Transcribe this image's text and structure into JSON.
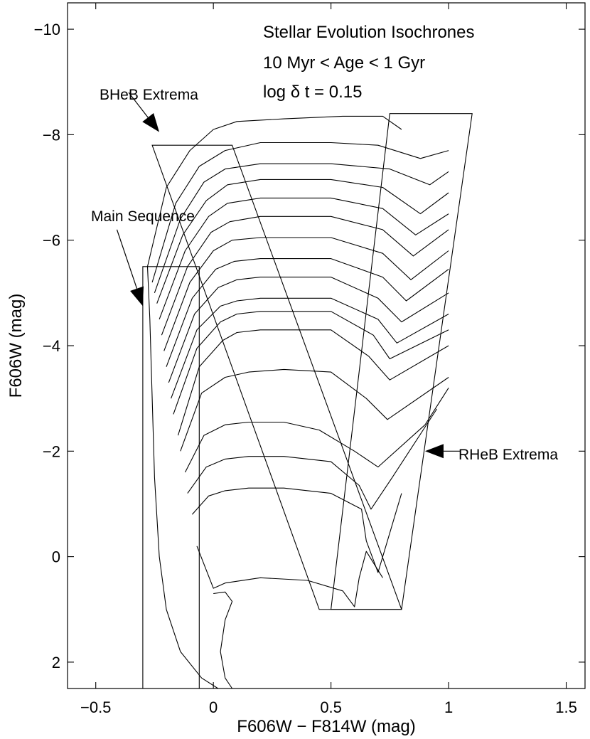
{
  "chart_data": {
    "type": "line",
    "title_lines": [
      "Stellar Evolution Isochrones",
      "10 Myr < Age < 1 Gyr",
      "log δ t = 0.15"
    ],
    "xlabel": "F606W − F814W (mag)",
    "ylabel": "F606W (mag)",
    "xlim": [
      -0.62,
      1.58
    ],
    "ylim": [
      2.5,
      -10.5
    ],
    "y_inverted": true,
    "xticks": [
      -0.5,
      0,
      0.5,
      1,
      1.5
    ],
    "xtick_labels": [
      "−0.5",
      "0",
      "0.5",
      "1",
      "1.5"
    ],
    "yticks": [
      -10,
      -8,
      -6,
      -4,
      -2,
      0,
      2
    ],
    "ytick_labels": [
      "−10",
      "−8",
      "−6",
      "−4",
      "−2",
      "0",
      "2"
    ],
    "annotations": [
      {
        "text": "BHeB Extrema",
        "arrow_to": [
          -0.23,
          -8.05
        ]
      },
      {
        "text": "Main Sequence",
        "arrow_to": [
          -0.3,
          -4.75
        ]
      },
      {
        "text": "RHeB Extrema",
        "arrow_to": [
          0.9,
          -2.0
        ]
      }
    ],
    "regions": [
      {
        "name": "main-sequence-box",
        "points": [
          [
            -0.3,
            2.5
          ],
          [
            -0.3,
            -5.5
          ],
          [
            -0.06,
            -5.5
          ],
          [
            -0.06,
            2.5
          ]
        ]
      },
      {
        "name": "bheb-box",
        "points": [
          [
            -0.26,
            -7.8
          ],
          [
            0.08,
            -7.8
          ],
          [
            0.8,
            1.0
          ],
          [
            0.45,
            1.0
          ]
        ]
      },
      {
        "name": "rheb-box",
        "points": [
          [
            0.75,
            -8.4
          ],
          [
            1.1,
            -8.4
          ],
          [
            0.8,
            1.0
          ],
          [
            0.5,
            1.0
          ]
        ]
      }
    ],
    "series": [
      {
        "name": "isochrone-1",
        "points": [
          [
            -0.28,
            -5.5
          ],
          [
            -0.2,
            -7.0
          ],
          [
            -0.1,
            -7.7
          ],
          [
            0.0,
            -8.1
          ],
          [
            0.1,
            -8.25
          ],
          [
            0.3,
            -8.3
          ],
          [
            0.55,
            -8.35
          ],
          [
            0.72,
            -8.35
          ],
          [
            0.8,
            -8.1
          ]
        ]
      },
      {
        "name": "isochrone-2",
        "points": [
          [
            -0.26,
            -5.2
          ],
          [
            -0.16,
            -6.7
          ],
          [
            -0.06,
            -7.4
          ],
          [
            0.05,
            -7.7
          ],
          [
            0.2,
            -7.85
          ],
          [
            0.5,
            -7.85
          ],
          [
            0.7,
            -7.8
          ],
          [
            0.88,
            -7.55
          ],
          [
            1.0,
            -7.7
          ]
        ]
      },
      {
        "name": "isochrone-3",
        "points": [
          [
            -0.25,
            -5.0
          ],
          [
            -0.14,
            -6.4
          ],
          [
            -0.04,
            -7.1
          ],
          [
            0.05,
            -7.35
          ],
          [
            0.2,
            -7.45
          ],
          [
            0.5,
            -7.45
          ],
          [
            0.75,
            -7.35
          ],
          [
            0.92,
            -7.05
          ],
          [
            1.0,
            -7.3
          ]
        ]
      },
      {
        "name": "isochrone-4",
        "points": [
          [
            -0.24,
            -4.8
          ],
          [
            -0.13,
            -6.1
          ],
          [
            -0.03,
            -6.75
          ],
          [
            0.06,
            -7.05
          ],
          [
            0.2,
            -7.15
          ],
          [
            0.5,
            -7.15
          ],
          [
            0.72,
            -7.0
          ],
          [
            0.88,
            -6.5
          ],
          [
            1.0,
            -6.9
          ]
        ]
      },
      {
        "name": "isochrone-5",
        "points": [
          [
            -0.23,
            -4.5
          ],
          [
            -0.12,
            -5.8
          ],
          [
            -0.02,
            -6.45
          ],
          [
            0.06,
            -6.7
          ],
          [
            0.2,
            -6.8
          ],
          [
            0.5,
            -6.8
          ],
          [
            0.72,
            -6.6
          ],
          [
            0.86,
            -6.1
          ],
          [
            1.0,
            -6.5
          ]
        ]
      },
      {
        "name": "isochrone-6",
        "points": [
          [
            -0.22,
            -4.2
          ],
          [
            -0.11,
            -5.5
          ],
          [
            -0.01,
            -6.15
          ],
          [
            0.07,
            -6.35
          ],
          [
            0.2,
            -6.45
          ],
          [
            0.5,
            -6.45
          ],
          [
            0.72,
            -6.2
          ],
          [
            0.85,
            -5.7
          ],
          [
            1.0,
            -6.2
          ]
        ]
      },
      {
        "name": "isochrone-7",
        "points": [
          [
            -0.21,
            -3.9
          ],
          [
            -0.1,
            -5.2
          ],
          [
            0.0,
            -5.8
          ],
          [
            0.08,
            -6.0
          ],
          [
            0.2,
            -6.05
          ],
          [
            0.5,
            -6.05
          ],
          [
            0.72,
            -5.75
          ],
          [
            0.84,
            -5.25
          ],
          [
            1.0,
            -5.8
          ]
        ]
      },
      {
        "name": "isochrone-8",
        "points": [
          [
            -0.2,
            -3.6
          ],
          [
            -0.09,
            -4.9
          ],
          [
            0.01,
            -5.45
          ],
          [
            0.09,
            -5.6
          ],
          [
            0.2,
            -5.65
          ],
          [
            0.5,
            -5.65
          ],
          [
            0.72,
            -5.3
          ],
          [
            0.82,
            -4.85
          ],
          [
            1.0,
            -5.45
          ]
        ]
      },
      {
        "name": "isochrone-9",
        "points": [
          [
            -0.19,
            -3.3
          ],
          [
            -0.08,
            -4.6
          ],
          [
            0.02,
            -5.1
          ],
          [
            0.1,
            -5.25
          ],
          [
            0.2,
            -5.3
          ],
          [
            0.5,
            -5.3
          ],
          [
            0.7,
            -4.9
          ],
          [
            0.8,
            -4.45
          ],
          [
            1.0,
            -5.0
          ]
        ]
      },
      {
        "name": "isochrone-10",
        "points": [
          [
            -0.18,
            -3.0
          ],
          [
            -0.07,
            -4.3
          ],
          [
            0.03,
            -4.75
          ],
          [
            0.1,
            -4.85
          ],
          [
            0.2,
            -4.9
          ],
          [
            0.5,
            -4.9
          ],
          [
            0.7,
            -4.5
          ],
          [
            0.78,
            -4.05
          ],
          [
            1.0,
            -4.6
          ]
        ]
      },
      {
        "name": "isochrone-11",
        "points": [
          [
            -0.17,
            -2.7
          ],
          [
            -0.07,
            -3.95
          ],
          [
            0.03,
            -4.45
          ],
          [
            0.1,
            -4.6
          ],
          [
            0.2,
            -4.65
          ],
          [
            0.5,
            -4.65
          ],
          [
            0.68,
            -4.2
          ],
          [
            0.75,
            -3.75
          ],
          [
            1.0,
            -4.3
          ]
        ]
      },
      {
        "name": "isochrone-12",
        "points": [
          [
            -0.15,
            -2.3
          ],
          [
            -0.06,
            -3.6
          ],
          [
            0.04,
            -4.1
          ],
          [
            0.1,
            -4.25
          ],
          [
            0.2,
            -4.3
          ],
          [
            0.5,
            -4.3
          ],
          [
            0.66,
            -3.8
          ],
          [
            0.75,
            -3.35
          ],
          [
            1.0,
            -4.0
          ]
        ]
      },
      {
        "name": "isochrone-13",
        "points": [
          [
            -0.14,
            -2.0
          ],
          [
            -0.05,
            -3.1
          ],
          [
            0.05,
            -3.4
          ],
          [
            0.15,
            -3.5
          ],
          [
            0.3,
            -3.55
          ],
          [
            0.5,
            -3.5
          ],
          [
            0.65,
            -3.0
          ],
          [
            0.74,
            -2.6
          ],
          [
            1.0,
            -3.4
          ]
        ]
      },
      {
        "name": "isochrone-14",
        "points": [
          [
            -0.12,
            -1.6
          ],
          [
            -0.04,
            -2.3
          ],
          [
            0.05,
            -2.5
          ],
          [
            0.15,
            -2.55
          ],
          [
            0.3,
            -2.55
          ],
          [
            0.45,
            -2.4
          ],
          [
            0.6,
            -2.0
          ],
          [
            0.7,
            -1.7
          ],
          [
            0.9,
            -2.5
          ],
          [
            1.0,
            -3.2
          ]
        ]
      },
      {
        "name": "isochrone-15",
        "points": [
          [
            -0.11,
            -1.2
          ],
          [
            -0.03,
            -1.7
          ],
          [
            0.05,
            -1.85
          ],
          [
            0.15,
            -1.9
          ],
          [
            0.3,
            -1.9
          ],
          [
            0.5,
            -1.8
          ],
          [
            0.62,
            -1.35
          ],
          [
            0.67,
            -0.9
          ],
          [
            0.76,
            -1.5
          ],
          [
            0.95,
            -2.8
          ]
        ]
      },
      {
        "name": "isochrone-16",
        "points": [
          [
            -0.09,
            -0.8
          ],
          [
            -0.02,
            -1.15
          ],
          [
            0.05,
            -1.25
          ],
          [
            0.15,
            -1.3
          ],
          [
            0.3,
            -1.3
          ],
          [
            0.5,
            -1.2
          ],
          [
            0.63,
            -0.9
          ],
          [
            0.65,
            -0.3
          ],
          [
            0.7,
            0.3
          ],
          [
            0.8,
            -1.2
          ]
        ]
      },
      {
        "name": "isochrone-17",
        "points": [
          [
            -0.07,
            -0.2
          ],
          [
            0.0,
            0.6
          ],
          [
            0.05,
            0.5
          ],
          [
            0.2,
            0.4
          ],
          [
            0.4,
            0.45
          ],
          [
            0.55,
            0.65
          ],
          [
            0.6,
            0.95
          ],
          [
            0.62,
            0.4
          ],
          [
            0.65,
            -0.1
          ],
          [
            0.72,
            0.4
          ]
        ]
      },
      {
        "name": "isochrone-18",
        "points": [
          [
            0.0,
            0.7
          ],
          [
            0.05,
            0.67
          ],
          [
            0.08,
            0.85
          ],
          [
            0.05,
            1.2
          ],
          [
            0.03,
            1.8
          ],
          [
            0.05,
            2.3
          ],
          [
            0.08,
            2.5
          ]
        ]
      },
      {
        "name": "main-sequence-envelope",
        "points": [
          [
            -0.28,
            -5.5
          ],
          [
            -0.27,
            -4.5
          ],
          [
            -0.26,
            -3.0
          ],
          [
            -0.25,
            -1.5
          ],
          [
            -0.23,
            0.0
          ],
          [
            -0.2,
            1.0
          ],
          [
            -0.14,
            1.8
          ],
          [
            -0.05,
            2.3
          ],
          [
            0.02,
            2.5
          ]
        ]
      }
    ]
  }
}
